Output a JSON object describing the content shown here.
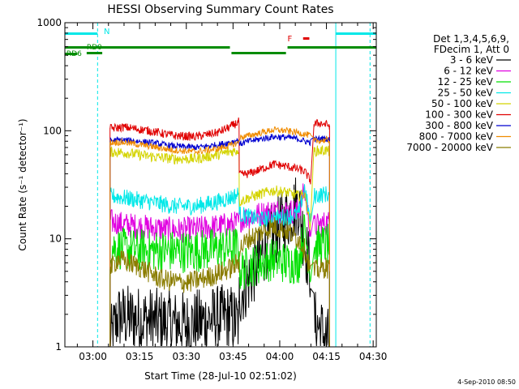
{
  "chart_data": {
    "type": "line",
    "title": "HESSI Observing Summary Count Rates",
    "xlabel": "Start Time (28-Jul-10 02:51:02)",
    "ylabel": "Count Rate (s⁻¹ detector⁻¹)",
    "y_scale": "log",
    "ylim": [
      1,
      1000
    ],
    "xlim_minutes_from_0300": [
      -9,
      91
    ],
    "x_ticks": [
      {
        "label": "03:00",
        "min": 0
      },
      {
        "label": "03:15",
        "min": 15
      },
      {
        "label": "03:30",
        "min": 30
      },
      {
        "label": "03:45",
        "min": 45
      },
      {
        "label": "04:00",
        "min": 60
      },
      {
        "label": "04:15",
        "min": 75
      },
      {
        "label": "04:30",
        "min": 90
      }
    ],
    "y_ticks": [
      {
        "label": "1",
        "v": 1
      },
      {
        "label": "10",
        "v": 10
      },
      {
        "label": "100",
        "v": 100
      },
      {
        "label": "1000",
        "v": 1000
      }
    ],
    "legend": {
      "position": "top-right",
      "header": [
        "Det 1,3,4,5,6,9,",
        "FDecim 1, Att 0"
      ],
      "entries": [
        {
          "label": "3 - 6 keV",
          "color": "#000000"
        },
        {
          "label": "6 - 12 keV",
          "color": "#e000e0"
        },
        {
          "label": "12 - 25 keV",
          "color": "#00e000"
        },
        {
          "label": "25 - 50 keV",
          "color": "#00e8e8"
        },
        {
          "label": "50 - 100 keV",
          "color": "#d4d400"
        },
        {
          "label": "100 - 300 keV",
          "color": "#e00000"
        },
        {
          "label": "300 - 800 keV",
          "color": "#0000d0"
        },
        {
          "label": "800 - 7000 keV",
          "color": "#f08c00"
        },
        {
          "label": "7000 - 20000 keV",
          "color": "#8b7d00"
        }
      ]
    },
    "series": [
      {
        "name": "3 - 6 keV",
        "color": "#000000",
        "noise": 0.9,
        "segments": [
          [
            [
              5.5,
              1.1
            ],
            [
              8,
              1.9
            ],
            [
              15,
              1.8
            ],
            [
              22,
              1.7
            ],
            [
              30,
              1.6
            ],
            [
              38,
              1.8
            ],
            [
              44,
              1.9
            ],
            [
              47,
              1.6
            ]
          ],
          [
            [
              47,
              3
            ],
            [
              50,
              4
            ],
            [
              53,
              6
            ],
            [
              56,
              9
            ],
            [
              59,
              12
            ],
            [
              62,
              15
            ],
            [
              65,
              20
            ],
            [
              66,
              22
            ],
            [
              68,
              9
            ],
            [
              70,
              5
            ]
          ],
          [
            [
              71,
              1.7
            ],
            [
              73,
              1.5
            ],
            [
              74,
              1.3
            ],
            [
              76,
              1.1
            ]
          ]
        ]
      },
      {
        "name": "6 - 12 keV",
        "color": "#e000e0",
        "noise": 0.12,
        "segments": [
          [
            [
              5.5,
              14.5
            ],
            [
              10,
              13.5
            ],
            [
              20,
              12.5
            ],
            [
              28,
              12
            ],
            [
              35,
              12.5
            ],
            [
              40,
              13
            ],
            [
              44,
              13.5
            ],
            [
              47,
              14
            ]
          ],
          [
            [
              47,
              15
            ],
            [
              50,
              16
            ],
            [
              54,
              17
            ],
            [
              58,
              18
            ],
            [
              62,
              18
            ],
            [
              66,
              18
            ],
            [
              68,
              28
            ],
            [
              70,
              11
            ]
          ],
          [
            [
              71,
              13
            ],
            [
              75,
              14
            ],
            [
              76,
              14
            ]
          ]
        ]
      },
      {
        "name": "12 - 25 keV",
        "color": "#00e000",
        "noise": 0.2,
        "segments": [
          [
            [
              5.5,
              8.5
            ],
            [
              10,
              8
            ],
            [
              20,
              7.8
            ],
            [
              30,
              7.6
            ],
            [
              38,
              8
            ],
            [
              44,
              8.2
            ],
            [
              47,
              8.4
            ]
          ],
          [
            [
              47,
              5
            ],
            [
              50,
              5.5
            ],
            [
              54,
              6
            ],
            [
              58,
              6.5
            ],
            [
              62,
              6
            ],
            [
              66,
              6
            ],
            [
              68,
              12
            ],
            [
              70,
              5
            ]
          ],
          [
            [
              71,
              8.5
            ],
            [
              75,
              8.8
            ],
            [
              76,
              8.8
            ]
          ]
        ]
      },
      {
        "name": "25 - 50 keV",
        "color": "#00e8e8",
        "noise": 0.08,
        "segments": [
          [
            [
              5.5,
              25
            ],
            [
              10,
              24
            ],
            [
              18,
              22
            ],
            [
              26,
              20
            ],
            [
              33,
              20
            ],
            [
              40,
              22
            ],
            [
              44,
              24
            ],
            [
              47,
              26
            ]
          ],
          [
            [
              47,
              17
            ],
            [
              50,
              16
            ],
            [
              54,
              15
            ],
            [
              58,
              15.5
            ],
            [
              62,
              16
            ],
            [
              66,
              17
            ],
            [
              68,
              30
            ],
            [
              70,
              13
            ]
          ],
          [
            [
              71,
              25
            ],
            [
              75,
              26
            ],
            [
              76,
              25
            ]
          ]
        ]
      },
      {
        "name": "50 - 100 keV",
        "color": "#d4d400",
        "noise": 0.05,
        "segments": [
          [
            [
              5.5,
              64
            ],
            [
              10,
              63
            ],
            [
              18,
              58
            ],
            [
              26,
              55
            ],
            [
              33,
              55
            ],
            [
              40,
              60
            ],
            [
              44,
              64
            ],
            [
              47,
              66
            ]
          ],
          [
            [
              47,
              22
            ],
            [
              50,
              24
            ],
            [
              54,
              26
            ],
            [
              58,
              28
            ],
            [
              62,
              27
            ],
            [
              66,
              25
            ],
            [
              68,
              26
            ],
            [
              70,
              12
            ]
          ],
          [
            [
              71,
              65
            ],
            [
              75,
              66
            ],
            [
              76,
              64
            ]
          ]
        ]
      },
      {
        "name": "100 - 300 keV",
        "color": "#e00000",
        "noise": 0.04,
        "segments": [
          [
            [
              5.5,
              105
            ],
            [
              10,
              108
            ],
            [
              18,
              100
            ],
            [
              26,
              90
            ],
            [
              33,
              88
            ],
            [
              40,
              96
            ],
            [
              44,
              108
            ],
            [
              47,
              122
            ]
          ],
          [
            [
              47,
              39
            ],
            [
              50,
              40
            ],
            [
              54,
              44
            ],
            [
              58,
              49
            ],
            [
              62,
              47
            ],
            [
              66,
              44
            ],
            [
              68,
              42
            ],
            [
              70,
              34
            ]
          ],
          [
            [
              71,
              115
            ],
            [
              73,
              118
            ],
            [
              76,
              112
            ]
          ]
        ]
      },
      {
        "name": "300 - 800 keV",
        "color": "#0000d0",
        "noise": 0.03,
        "segments": [
          [
            [
              5.5,
              81
            ],
            [
              10,
              82
            ],
            [
              18,
              78
            ],
            [
              26,
              72
            ],
            [
              33,
              70
            ],
            [
              40,
              74
            ],
            [
              44,
              78
            ],
            [
              47,
              82
            ]
          ],
          [
            [
              47,
              75
            ],
            [
              50,
              80
            ],
            [
              54,
              84
            ],
            [
              58,
              88
            ],
            [
              62,
              87
            ],
            [
              66,
              84
            ],
            [
              68,
              80
            ],
            [
              70,
              78
            ]
          ],
          [
            [
              71,
              83
            ],
            [
              75,
              85
            ],
            [
              76,
              82
            ]
          ]
        ]
      },
      {
        "name": "800 - 7000 keV",
        "color": "#f08c00",
        "noise": 0.03,
        "segments": [
          [
            [
              5.5,
              78
            ],
            [
              10,
              78
            ],
            [
              18,
              72
            ],
            [
              26,
              66
            ],
            [
              33,
              64
            ],
            [
              40,
              68
            ],
            [
              44,
              73
            ],
            [
              47,
              78
            ]
          ],
          [
            [
              47,
              86
            ],
            [
              50,
              90
            ],
            [
              54,
              96
            ],
            [
              58,
              102
            ],
            [
              62,
              100
            ],
            [
              66,
              96
            ],
            [
              68,
              93
            ],
            [
              70,
              90
            ]
          ],
          [
            [
              71,
              80
            ],
            [
              75,
              82
            ],
            [
              76,
              80
            ]
          ]
        ]
      },
      {
        "name": "7000 - 20000 keV",
        "color": "#8b7d00",
        "noise": 0.1,
        "segments": [
          [
            [
              5.5,
              5.2
            ],
            [
              8,
              6.5
            ],
            [
              15,
              5.5
            ],
            [
              22,
              4.2
            ],
            [
              30,
              3.9
            ],
            [
              38,
              4.5
            ],
            [
              44,
              5.3
            ],
            [
              47,
              6
            ]
          ],
          [
            [
              47,
              8
            ],
            [
              50,
              10
            ],
            [
              54,
              11.5
            ],
            [
              58,
              13
            ],
            [
              62,
              12
            ],
            [
              66,
              10
            ],
            [
              68,
              8
            ],
            [
              70,
              5
            ]
          ],
          [
            [
              71,
              5
            ],
            [
              75,
              5.5
            ],
            [
              76,
              5
            ]
          ]
        ]
      }
    ],
    "annotations": {
      "N_label": "N",
      "F_label": "F",
      "RD6_label": "RD6",
      "RD0_label": "RD0",
      "cyan_color": "#00e8e8",
      "green_color": "#008c00",
      "red_color": "#e00000",
      "night_bars": [
        [
          -9,
          1.5
        ],
        [
          78,
          91
        ]
      ],
      "night_lines": [
        -9,
        1.5,
        78,
        89
      ],
      "saa_bars": [
        [
          -9,
          44
        ],
        [
          44.5,
          62
        ],
        [
          62.5,
          91
        ]
      ],
      "rd6_bar": [
        -9,
        -5
      ],
      "rd0_bar": [
        -2,
        3
      ],
      "flare_bar": [
        67.5,
        69.5
      ]
    }
  },
  "footer_timestamp": "4-Sep-2010 08:50"
}
